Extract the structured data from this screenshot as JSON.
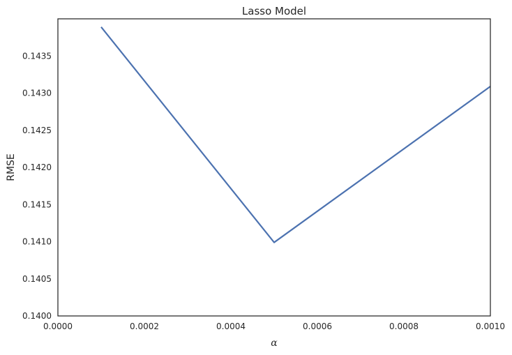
{
  "chart_data": {
    "type": "line",
    "title": "Lasso Model",
    "xlabel": "α",
    "ylabel": "RMSE",
    "xlim": [
      0.0,
      0.001
    ],
    "ylim": [
      0.14,
      0.144
    ],
    "x_ticks": [
      "0.0000",
      "0.0002",
      "0.0004",
      "0.0006",
      "0.0008",
      "0.0010"
    ],
    "y_ticks": [
      "0.1400",
      "0.1405",
      "0.1410",
      "0.1415",
      "0.1420",
      "0.1425",
      "0.1430",
      "0.1435"
    ],
    "grid": false,
    "series": [
      {
        "x": [
          0.0001,
          0.0005,
          0.001
        ],
        "y": [
          0.14389,
          0.14099,
          0.14309
        ]
      }
    ],
    "colors": {
      "line": "#4c72b0",
      "frame": "#262626"
    }
  }
}
